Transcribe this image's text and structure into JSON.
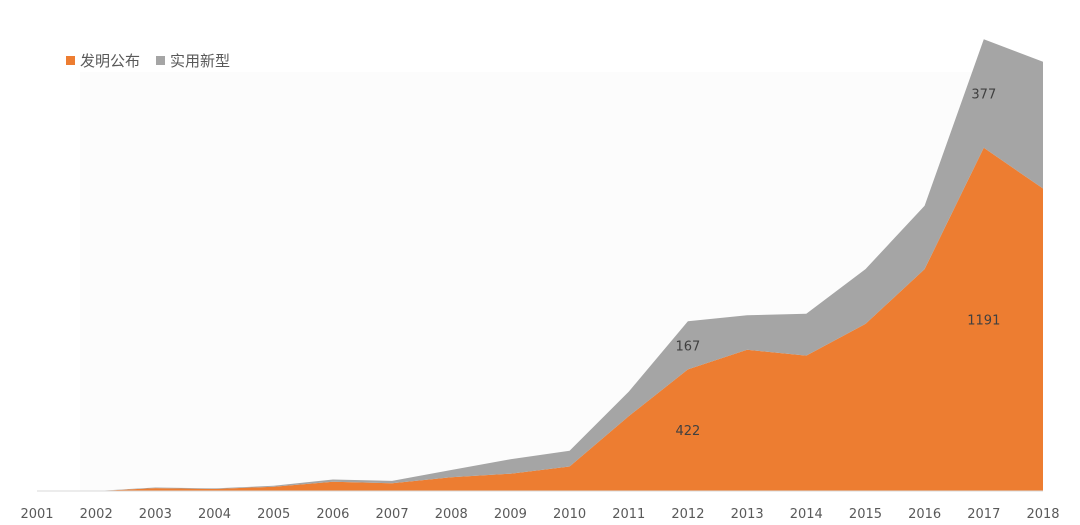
{
  "chart_data": {
    "type": "area",
    "stacked": true,
    "categories": [
      "2001",
      "2002",
      "2003",
      "2004",
      "2005",
      "2006",
      "2007",
      "2008",
      "2009",
      "2010",
      "2011",
      "2012",
      "2013",
      "2014",
      "2015",
      "2016",
      "2017",
      "2018"
    ],
    "series": [
      {
        "name": "发明公布",
        "color": "#ED7D31",
        "values": [
          0,
          0,
          10,
          7,
          15,
          32,
          27,
          48,
          60,
          85,
          260,
          422,
          490,
          470,
          580,
          770,
          1191,
          1050
        ]
      },
      {
        "name": "实用新型",
        "color": "#A5A5A5",
        "values": [
          0,
          0,
          2,
          2,
          3,
          8,
          8,
          25,
          50,
          55,
          85,
          167,
          120,
          145,
          190,
          220,
          377,
          440
        ]
      }
    ],
    "data_labels": [
      {
        "series": 0,
        "category": "2012",
        "text": "422"
      },
      {
        "series": 1,
        "category": "2012",
        "text": "167"
      },
      {
        "series": 0,
        "category": "2017",
        "text": "1191"
      },
      {
        "series": 1,
        "category": "2017",
        "text": "377"
      }
    ],
    "legend_position": "top-left",
    "grid": false,
    "ylim": [
      0,
      1600
    ]
  }
}
